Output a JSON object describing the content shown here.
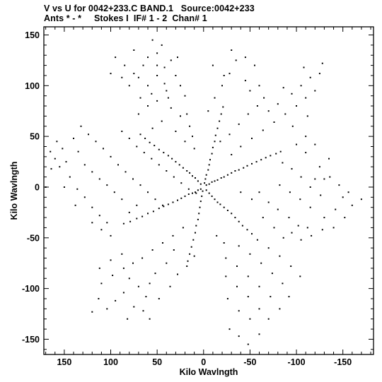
{
  "header": {
    "line1": "V vs U for 0042+233.C BAND.1   Source:0042+233",
    "line2": "Ants * - *     Stokes I  IF# 1 - 2  Chan# 1"
  },
  "chart_data": {
    "type": "scatter",
    "xlabel": "Kilo Wavlngth",
    "ylabel": "Kilo Wavlngth",
    "xlim": [
      172,
      -183
    ],
    "ylim": [
      -165,
      158
    ],
    "x_ticks": [
      150,
      100,
      50,
      0,
      -50,
      -100,
      -150
    ],
    "y_ticks": [
      150,
      100,
      50,
      0,
      -50,
      -100,
      -150
    ],
    "x_tick_labels": [
      "150",
      "100",
      "50",
      "0",
      "-50",
      "-100",
      "-150"
    ],
    "y_tick_labels": [
      "150",
      "100",
      "50",
      "0",
      "-50",
      "-100",
      "-150"
    ],
    "grid": false,
    "point_color": "#000000",
    "points": [
      [
        -3,
        2
      ],
      [
        -6,
        3
      ],
      [
        -9,
        5
      ],
      [
        -12,
        6
      ],
      [
        -15,
        7
      ],
      [
        -19,
        9
      ],
      [
        -22,
        10
      ],
      [
        -26,
        12
      ],
      [
        -30,
        14
      ],
      [
        -34,
        16
      ],
      [
        -38,
        17
      ],
      [
        -43,
        19
      ],
      [
        -47,
        21
      ],
      [
        -52,
        23
      ],
      [
        -57,
        25
      ],
      [
        -62,
        27
      ],
      [
        -67,
        29
      ],
      [
        -72,
        31
      ],
      [
        -78,
        33
      ],
      [
        -83,
        35
      ],
      [
        3,
        -2
      ],
      [
        6,
        -3
      ],
      [
        9,
        -5
      ],
      [
        12,
        -6
      ],
      [
        16,
        -7
      ],
      [
        20,
        -9
      ],
      [
        24,
        -11
      ],
      [
        28,
        -13
      ],
      [
        33,
        -15
      ],
      [
        38,
        -17
      ],
      [
        43,
        -19
      ],
      [
        48,
        -21
      ],
      [
        54,
        -24
      ],
      [
        60,
        -26
      ],
      [
        66,
        -29
      ],
      [
        72,
        -31
      ],
      [
        79,
        -34
      ],
      [
        86,
        -36
      ],
      [
        3,
        3
      ],
      [
        6,
        6
      ],
      [
        9,
        9
      ],
      [
        12,
        11
      ],
      [
        15,
        14
      ],
      [
        18,
        16
      ],
      [
        22,
        19
      ],
      [
        26,
        22
      ],
      [
        30,
        25
      ],
      [
        34,
        28
      ],
      [
        38,
        31
      ],
      [
        43,
        34
      ],
      [
        48,
        37
      ],
      [
        53,
        41
      ],
      [
        58,
        44
      ],
      [
        63,
        48
      ],
      [
        68,
        52
      ],
      [
        -3,
        -3
      ],
      [
        -6,
        -6
      ],
      [
        -9,
        -9
      ],
      [
        -12,
        -12
      ],
      [
        -15,
        -15
      ],
      [
        -18,
        -17
      ],
      [
        -22,
        -20
      ],
      [
        -26,
        -23
      ],
      [
        -30,
        -26
      ],
      [
        -34,
        -30
      ],
      [
        -38,
        -34
      ],
      [
        -42,
        -38
      ],
      [
        -47,
        -42
      ],
      [
        -52,
        -46
      ],
      [
        -1,
        4
      ],
      [
        -2,
        8
      ],
      [
        -3,
        12
      ],
      [
        -5,
        17
      ],
      [
        -6,
        22
      ],
      [
        -7,
        27
      ],
      [
        -9,
        33
      ],
      [
        -10,
        39
      ],
      [
        -12,
        45
      ],
      [
        -13,
        51
      ],
      [
        -15,
        58
      ],
      [
        -17,
        65
      ],
      [
        -19,
        72
      ],
      [
        -21,
        79
      ],
      [
        1,
        -4
      ],
      [
        2,
        -9
      ],
      [
        3,
        -14
      ],
      [
        4,
        -20
      ],
      [
        5,
        -26
      ],
      [
        6,
        -32
      ],
      [
        8,
        -38
      ],
      [
        9,
        -45
      ],
      [
        11,
        -52
      ],
      [
        13,
        -59
      ],
      [
        15,
        -66
      ],
      [
        17,
        -73
      ],
      [
        120,
        -123
      ],
      [
        113,
        -110
      ],
      [
        104,
        -120
      ],
      [
        95,
        -112
      ],
      [
        86,
        -104
      ],
      [
        110,
        -95
      ],
      [
        98,
        -87
      ],
      [
        86,
        -80
      ],
      [
        75,
        -118
      ],
      [
        65,
        -122
      ],
      [
        62,
        -108
      ],
      [
        58,
        -95
      ],
      [
        52,
        -85
      ],
      [
        70,
        -98
      ],
      [
        80,
        -90
      ],
      [
        76,
        -75
      ],
      [
        66,
        -70
      ],
      [
        55,
        -62
      ],
      [
        44,
        -55
      ],
      [
        33,
        -48
      ],
      [
        22,
        -40
      ],
      [
        40,
        -75
      ],
      [
        48,
        -110
      ],
      [
        36,
        -98
      ],
      [
        28,
        -86
      ],
      [
        18,
        -78
      ],
      [
        10,
        -68
      ],
      [
        32,
        -62
      ],
      [
        88,
        -66
      ],
      [
        100,
        -72
      ],
      [
        112,
        -80
      ],
      [
        58,
        -130
      ],
      [
        82,
        -130
      ],
      [
        -28,
        -140
      ],
      [
        -38,
        -147
      ],
      [
        -48,
        -155
      ],
      [
        -60,
        -145
      ],
      [
        -50,
        -130
      ],
      [
        -38,
        -122
      ],
      [
        -26,
        -110
      ],
      [
        -60,
        -120
      ],
      [
        -48,
        -108
      ],
      [
        -36,
        -98
      ],
      [
        -24,
        -88
      ],
      [
        -70,
        -130
      ],
      [
        -72,
        -108
      ],
      [
        -60,
        -98
      ],
      [
        -48,
        -88
      ],
      [
        -36,
        -78
      ],
      [
        -24,
        -70
      ],
      [
        -82,
        -120
      ],
      [
        -85,
        -95
      ],
      [
        -74,
        -85
      ],
      [
        -62,
        -75
      ],
      [
        -50,
        -66
      ],
      [
        -38,
        -58
      ],
      [
        -92,
        -108
      ],
      [
        -58,
        -52
      ],
      [
        -70,
        -60
      ],
      [
        -82,
        -68
      ],
      [
        -94,
        -78
      ],
      [
        -104,
        -88
      ],
      [
        -22,
        -55
      ],
      [
        -14,
        -48
      ],
      [
        -130,
        -30
      ],
      [
        -142,
        -22
      ],
      [
        -152,
        -30
      ],
      [
        -160,
        -18
      ],
      [
        -170,
        -12
      ],
      [
        -156,
        -5
      ],
      [
        -146,
        2
      ],
      [
        -136,
        10
      ],
      [
        -126,
        -8
      ],
      [
        -115,
        -20
      ],
      [
        -104,
        -12
      ],
      [
        -93,
        -5
      ],
      [
        -82,
        2
      ],
      [
        -115,
        0
      ],
      [
        -105,
        10
      ],
      [
        -95,
        18
      ],
      [
        -85,
        24
      ],
      [
        -125,
        20
      ],
      [
        -135,
        28
      ],
      [
        -140,
        -40
      ],
      [
        -128,
        -42
      ],
      [
        -116,
        -48
      ],
      [
        -105,
        -52
      ],
      [
        -95,
        -45
      ],
      [
        -150,
        -10
      ],
      [
        -60,
        -5
      ],
      [
        -70,
        -15
      ],
      [
        -80,
        -22
      ],
      [
        -92,
        -30
      ],
      [
        -102,
        -38
      ],
      [
        -112,
        -40
      ],
      [
        -40,
        -5
      ],
      [
        -52,
        -12
      ],
      [
        -64,
        -30
      ],
      [
        -76,
        -40
      ],
      [
        -86,
        -50
      ],
      [
        -120,
        8
      ],
      [
        -110,
        34
      ],
      [
        -100,
        42
      ],
      [
        -110,
        50
      ],
      [
        -120,
        42
      ],
      [
        -130,
        8
      ],
      [
        -5,
        75
      ],
      [
        -12,
        88
      ],
      [
        -20,
        100
      ],
      [
        -28,
        112
      ],
      [
        -35,
        125
      ],
      [
        -30,
        135
      ],
      [
        -45,
        105
      ],
      [
        -45,
        128
      ],
      [
        -55,
        120
      ],
      [
        -50,
        95
      ],
      [
        -60,
        100
      ],
      [
        -65,
        88
      ],
      [
        -58,
        80
      ],
      [
        -48,
        72
      ],
      [
        -38,
        62
      ],
      [
        -28,
        52
      ],
      [
        -18,
        45
      ],
      [
        -70,
        75
      ],
      [
        -80,
        82
      ],
      [
        -95,
        92
      ],
      [
        -105,
        100
      ],
      [
        -115,
        108
      ],
      [
        -125,
        112
      ],
      [
        -120,
        95
      ],
      [
        -110,
        88
      ],
      [
        -100,
        80
      ],
      [
        -88,
        72
      ],
      [
        -76,
        64
      ],
      [
        -64,
        56
      ],
      [
        -52,
        48
      ],
      [
        -40,
        40
      ],
      [
        -30,
        32
      ],
      [
        -22,
        110
      ],
      [
        -10,
        120
      ],
      [
        -96,
        60
      ],
      [
        -112,
        70
      ],
      [
        -128,
        122
      ],
      [
        -108,
        118
      ],
      [
        -86,
        98
      ],
      [
        65,
        120
      ],
      [
        75,
        112
      ],
      [
        85,
        120
      ],
      [
        95,
        128
      ],
      [
        100,
        112
      ],
      [
        80,
        100
      ],
      [
        70,
        108
      ],
      [
        60,
        100
      ],
      [
        50,
        110
      ],
      [
        42,
        118
      ],
      [
        35,
        125
      ],
      [
        45,
        140
      ],
      [
        55,
        145
      ],
      [
        50,
        132
      ],
      [
        30,
        110
      ],
      [
        25,
        100
      ],
      [
        20,
        90
      ],
      [
        40,
        95
      ],
      [
        50,
        85
      ],
      [
        60,
        80
      ],
      [
        70,
        72
      ],
      [
        35,
        78
      ],
      [
        25,
        70
      ],
      [
        15,
        60
      ],
      [
        45,
        65
      ],
      [
        55,
        58
      ],
      [
        30,
        55
      ],
      [
        20,
        45
      ],
      [
        10,
        38
      ],
      [
        38,
        88
      ],
      [
        60,
        128
      ],
      [
        75,
        135
      ],
      [
        88,
        108
      ],
      [
        28,
        128
      ],
      [
        42,
        102
      ],
      [
        56,
        92
      ],
      [
        18,
        72
      ],
      [
        12,
        50
      ],
      [
        50,
        120
      ],
      [
        68,
        88
      ],
      [
        165,
        35
      ],
      [
        158,
        45
      ],
      [
        152,
        38
      ],
      [
        148,
        25
      ],
      [
        140,
        48
      ],
      [
        135,
        35
      ],
      [
        128,
        22
      ],
      [
        120,
        15
      ],
      [
        112,
        8
      ],
      [
        104,
        2
      ],
      [
        96,
        -5
      ],
      [
        88,
        -12
      ],
      [
        144,
        10
      ],
      [
        136,
        -2
      ],
      [
        128,
        -10
      ],
      [
        120,
        -20
      ],
      [
        112,
        -28
      ],
      [
        104,
        -35
      ],
      [
        155,
        20
      ],
      [
        160,
        28
      ],
      [
        132,
        60
      ],
      [
        124,
        52
      ],
      [
        116,
        45
      ],
      [
        108,
        38
      ],
      [
        100,
        30
      ],
      [
        92,
        22
      ],
      [
        84,
        15
      ],
      [
        76,
        8
      ],
      [
        68,
        2
      ],
      [
        60,
        -5
      ],
      [
        52,
        -12
      ],
      [
        44,
        -18
      ],
      [
        88,
        55
      ],
      [
        80,
        48
      ],
      [
        72,
        40
      ],
      [
        64,
        34
      ],
      [
        56,
        28
      ],
      [
        48,
        22
      ],
      [
        40,
        16
      ],
      [
        32,
        10
      ],
      [
        24,
        4
      ],
      [
        16,
        -2
      ],
      [
        8,
        -6
      ],
      [
        120,
        -35
      ],
      [
        110,
        -42
      ],
      [
        100,
        -48
      ],
      [
        138,
        -18
      ],
      [
        150,
        0
      ],
      [
        170,
        0
      ],
      [
        164,
        18
      ],
      [
        80,
        -25
      ],
      [
        72,
        -18
      ]
    ]
  }
}
